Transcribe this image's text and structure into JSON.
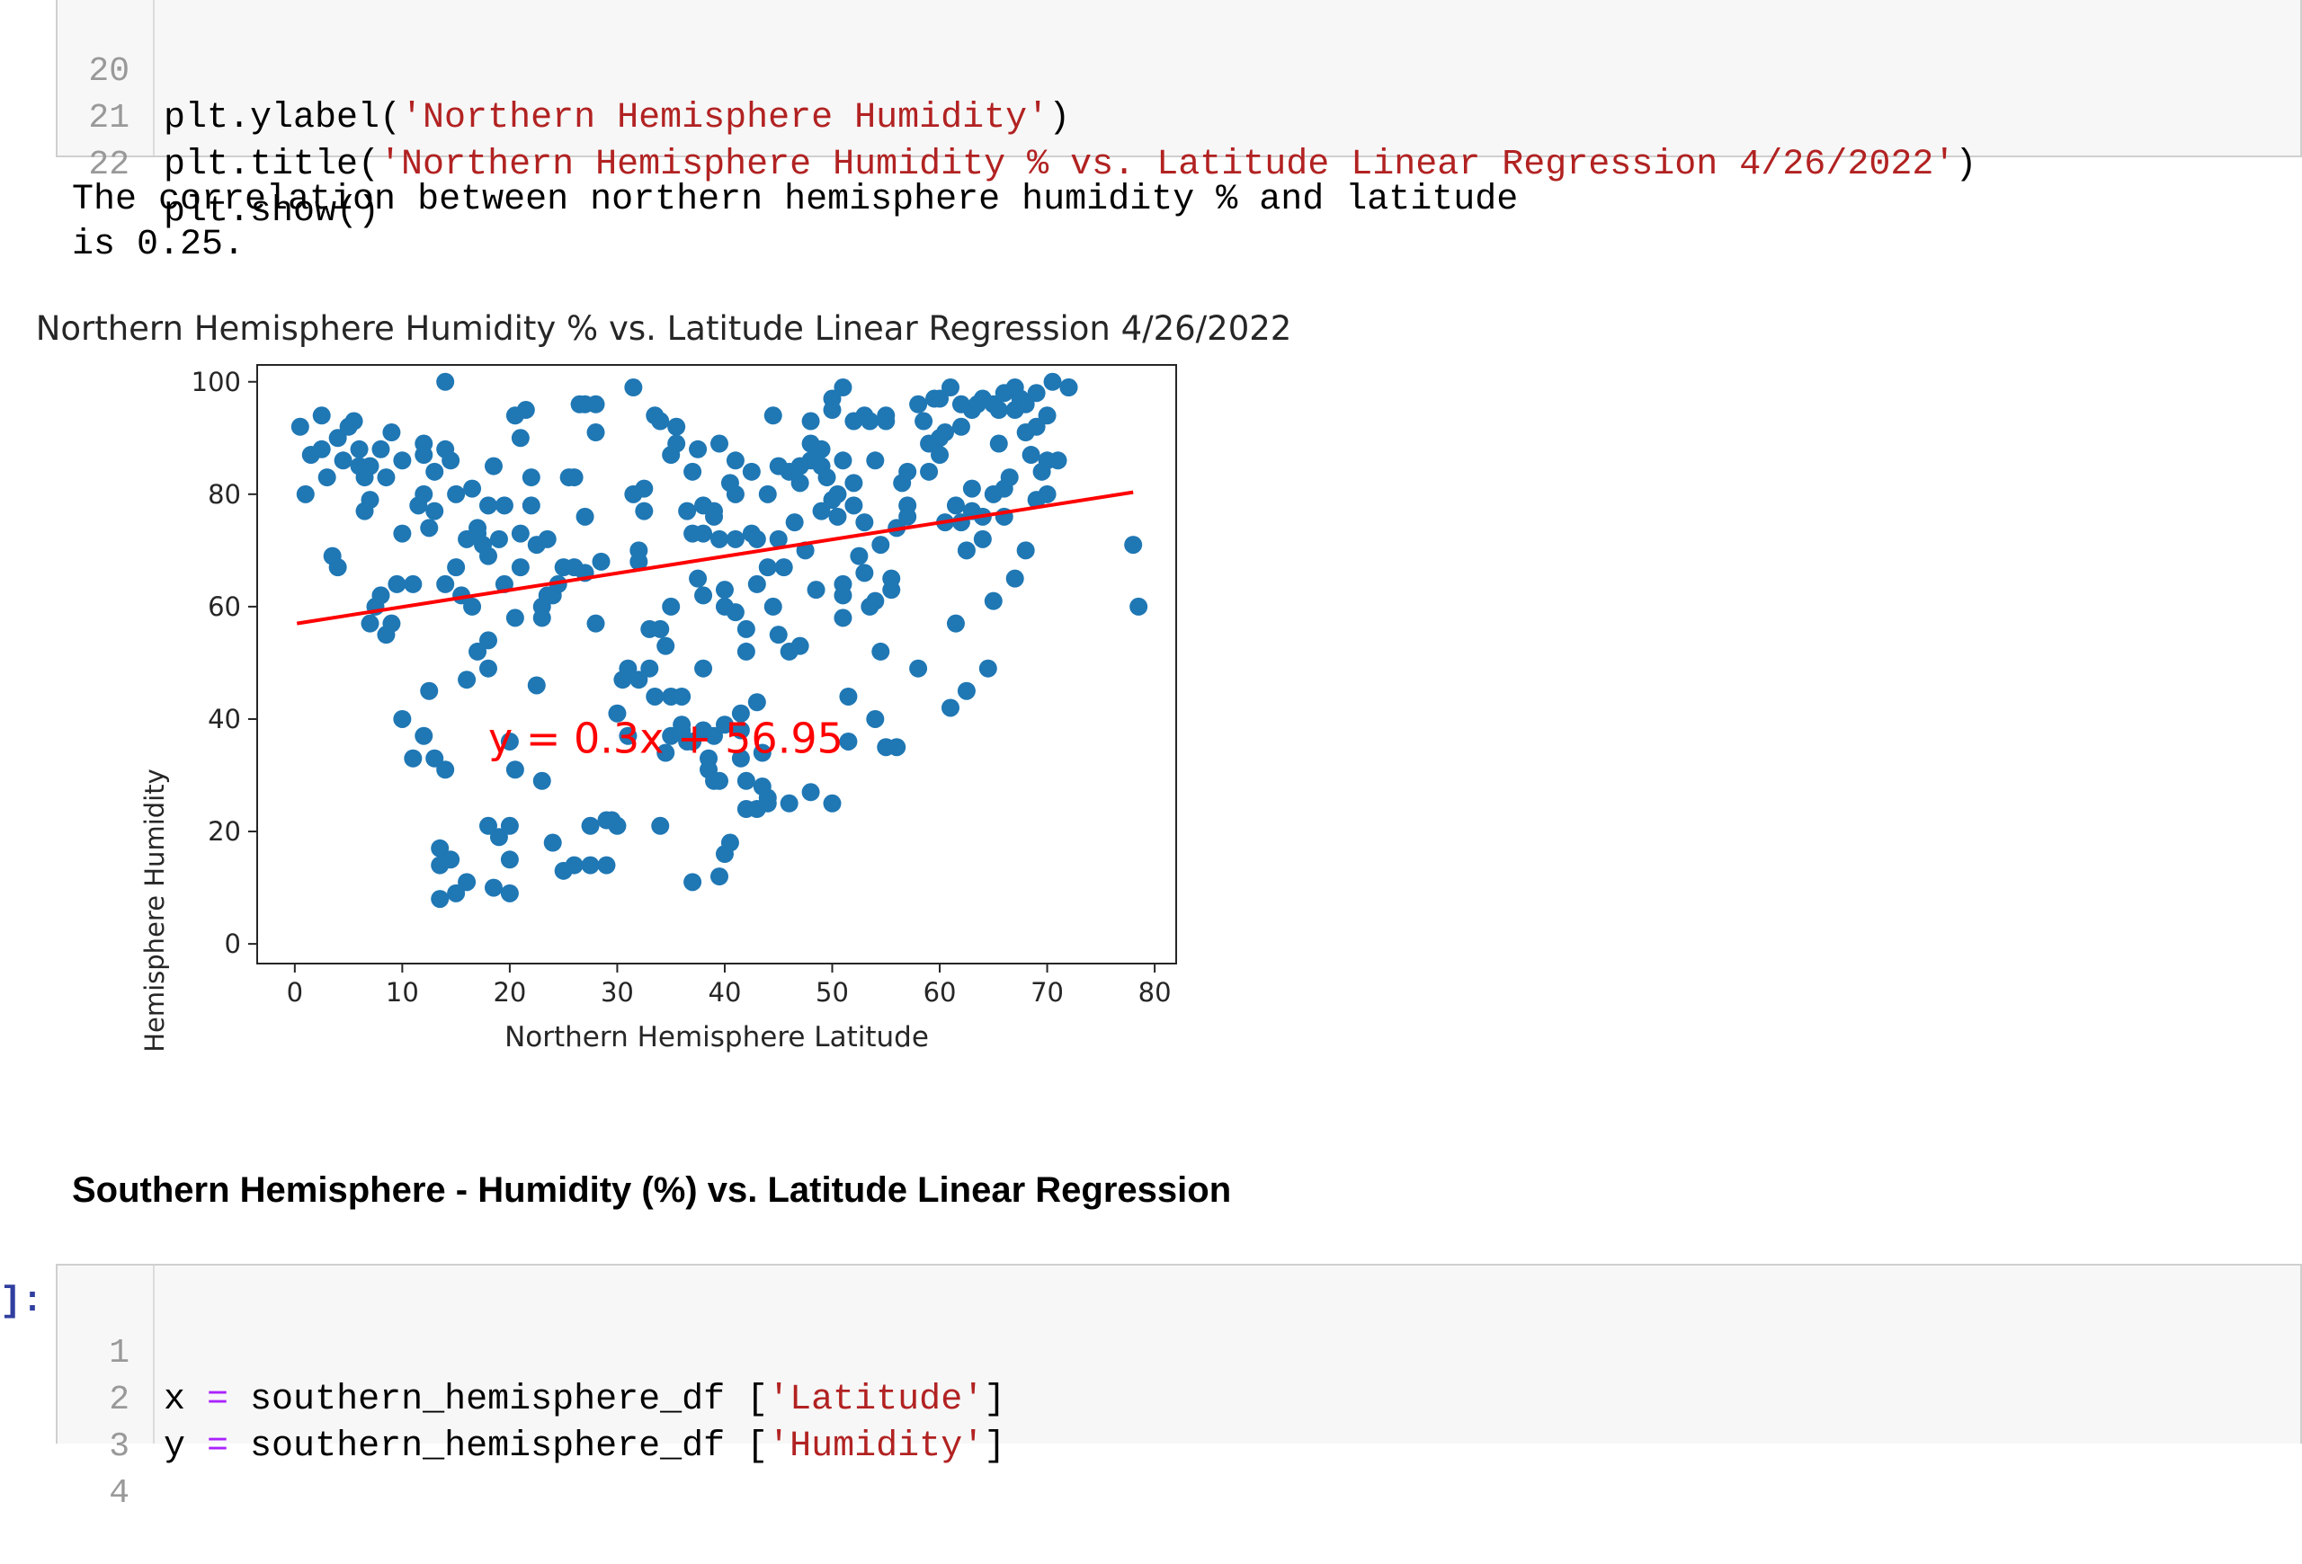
{
  "top_cell": {
    "lines": [
      {
        "num": "20",
        "pre": "plt.ylabel(",
        "str": "'Northern Hemisphere Humidity'",
        "post": ")"
      },
      {
        "num": "21",
        "pre": "plt.title(",
        "str": "'Northern Hemisphere Humidity % vs. Latitude Linear Regression 4/26/2022'",
        "post": ")"
      },
      {
        "num": "22",
        "pre": "plt.show()",
        "str": "",
        "post": ""
      }
    ]
  },
  "output": {
    "line1": "The correlation between northern hemisphere humidity % and latitude",
    "line2": "is 0.25."
  },
  "section_heading": "Southern Hemisphere - Humidity (%) vs. Latitude Linear Regression",
  "bottom_cell": {
    "prompt": "]:",
    "lines": [
      {
        "num": "1",
        "var": "x",
        "eq": "=",
        "pre": " southern_hemisphere_df [",
        "str": "'Latitude'",
        "post": "]"
      },
      {
        "num": "2",
        "var": "y",
        "eq": "=",
        "pre": " southern_hemisphere_df [",
        "str": "'Humidity'",
        "post": "]"
      },
      {
        "num": "3",
        "var": "",
        "eq": "",
        "pre": "",
        "str": "",
        "post": ""
      },
      {
        "num": "4",
        "var": "",
        "eq": "",
        "pre": "",
        "str": "",
        "post": ""
      }
    ]
  },
  "chart_data": {
    "type": "scatter",
    "title": "Northern Hemisphere Humidity % vs. Latitude Linear Regression 4/26/2022",
    "xlabel": "Northern Hemisphere Latitude",
    "ylabel": "Northern Hemisphere Humidity",
    "xlim": [
      -3.5,
      82
    ],
    "ylim": [
      -3.5,
      103
    ],
    "xticks": [
      0,
      10,
      20,
      30,
      40,
      50,
      60,
      70,
      80
    ],
    "yticks": [
      0,
      20,
      40,
      60,
      80,
      100
    ],
    "grid": false,
    "point_color": "#1f77b4",
    "line_color": "#ff0000",
    "regression": {
      "slope": 0.3,
      "intercept": 56.95,
      "x_range": [
        0.2,
        78
      ],
      "equation_label": "y = 0.3x + 56.95",
      "label_position": [
        18,
        34
      ]
    },
    "points": [
      [
        0.5,
        92
      ],
      [
        1,
        80
      ],
      [
        1.5,
        87
      ],
      [
        2.5,
        88
      ],
      [
        2.5,
        94
      ],
      [
        3,
        83
      ],
      [
        3.5,
        69
      ],
      [
        4,
        67
      ],
      [
        4,
        90
      ],
      [
        4.5,
        86
      ],
      [
        5,
        92
      ],
      [
        5.5,
        93
      ],
      [
        6,
        88
      ],
      [
        6,
        85
      ],
      [
        6.5,
        83
      ],
      [
        6.5,
        77
      ],
      [
        7,
        79
      ],
      [
        7,
        57
      ],
      [
        7,
        85
      ],
      [
        7.5,
        60
      ],
      [
        8,
        62
      ],
      [
        8,
        88
      ],
      [
        8.5,
        55
      ],
      [
        8.5,
        83
      ],
      [
        9,
        57
      ],
      [
        9,
        91
      ],
      [
        9.5,
        64
      ],
      [
        10,
        73
      ],
      [
        10,
        86
      ],
      [
        10,
        40
      ],
      [
        11,
        64
      ],
      [
        11,
        33
      ],
      [
        11.5,
        78
      ],
      [
        12,
        80
      ],
      [
        12,
        87
      ],
      [
        12,
        89
      ],
      [
        12,
        37
      ],
      [
        12.5,
        45
      ],
      [
        12.5,
        74
      ],
      [
        13,
        77
      ],
      [
        13,
        84
      ],
      [
        13,
        33
      ],
      [
        13.5,
        17
      ],
      [
        13.5,
        8
      ],
      [
        13.5,
        14
      ],
      [
        14,
        31
      ],
      [
        14,
        100
      ],
      [
        14,
        64
      ],
      [
        14,
        88
      ],
      [
        14.5,
        15
      ],
      [
        14.5,
        86
      ],
      [
        15,
        9
      ],
      [
        15,
        80
      ],
      [
        15,
        67
      ],
      [
        15.5,
        62
      ],
      [
        16,
        11
      ],
      [
        16,
        72
      ],
      [
        16,
        47
      ],
      [
        16.5,
        60
      ],
      [
        16.5,
        81
      ],
      [
        17,
        52
      ],
      [
        17,
        74
      ],
      [
        17,
        73
      ],
      [
        17.5,
        71
      ],
      [
        18,
        69
      ],
      [
        18,
        49
      ],
      [
        18,
        21
      ],
      [
        18,
        78
      ],
      [
        18,
        54
      ],
      [
        18.5,
        85
      ],
      [
        18.5,
        10
      ],
      [
        19,
        19
      ],
      [
        19,
        72
      ],
      [
        19.5,
        78
      ],
      [
        19.5,
        64
      ],
      [
        20,
        21
      ],
      [
        20,
        9
      ],
      [
        20,
        15
      ],
      [
        20,
        36
      ],
      [
        20.5,
        31
      ],
      [
        20.5,
        58
      ],
      [
        20.5,
        94
      ],
      [
        21,
        90
      ],
      [
        21,
        67
      ],
      [
        21,
        73
      ],
      [
        21.5,
        95
      ],
      [
        22,
        78
      ],
      [
        22,
        83
      ],
      [
        22.5,
        46
      ],
      [
        22.5,
        71
      ],
      [
        23,
        29
      ],
      [
        23,
        58
      ],
      [
        23,
        60
      ],
      [
        23.5,
        62
      ],
      [
        23.5,
        72
      ],
      [
        24,
        18
      ],
      [
        24,
        62
      ],
      [
        24.5,
        64
      ],
      [
        25,
        67
      ],
      [
        25,
        13
      ],
      [
        25.5,
        83
      ],
      [
        26,
        83
      ],
      [
        26,
        67
      ],
      [
        26,
        14
      ],
      [
        26.5,
        96
      ],
      [
        27,
        66
      ],
      [
        27,
        96
      ],
      [
        27,
        76
      ],
      [
        27.5,
        14
      ],
      [
        27.5,
        21
      ],
      [
        28,
        57
      ],
      [
        28,
        91
      ],
      [
        28,
        96
      ],
      [
        28.5,
        68
      ],
      [
        29,
        22
      ],
      [
        29,
        14
      ],
      [
        29.5,
        22
      ],
      [
        30,
        21
      ],
      [
        30,
        41
      ],
      [
        30.5,
        47
      ],
      [
        31,
        49
      ],
      [
        31,
        37
      ],
      [
        31.5,
        80
      ],
      [
        31.5,
        99
      ],
      [
        32,
        68
      ],
      [
        32,
        70
      ],
      [
        32,
        47
      ],
      [
        32.5,
        81
      ],
      [
        32.5,
        77
      ],
      [
        33,
        49
      ],
      [
        33,
        56
      ],
      [
        33.5,
        44
      ],
      [
        33.5,
        94
      ],
      [
        34,
        56
      ],
      [
        34,
        93
      ],
      [
        34,
        21
      ],
      [
        34.5,
        53
      ],
      [
        34.5,
        34
      ],
      [
        35,
        37
      ],
      [
        35,
        60
      ],
      [
        35,
        44
      ],
      [
        35,
        87
      ],
      [
        35.5,
        92
      ],
      [
        35.5,
        89
      ],
      [
        36,
        39
      ],
      [
        36,
        38
      ],
      [
        36,
        44
      ],
      [
        36.5,
        36
      ],
      [
        36.5,
        77
      ],
      [
        37,
        84
      ],
      [
        37,
        73
      ],
      [
        37,
        36
      ],
      [
        37,
        11
      ],
      [
        37.5,
        88
      ],
      [
        37.5,
        65
      ],
      [
        38,
        73
      ],
      [
        38,
        78
      ],
      [
        38,
        49
      ],
      [
        38,
        62
      ],
      [
        38,
        38
      ],
      [
        38.5,
        33
      ],
      [
        38.5,
        31
      ],
      [
        39,
        77
      ],
      [
        39,
        29
      ],
      [
        39,
        76
      ],
      [
        39,
        37
      ],
      [
        39.5,
        89
      ],
      [
        39.5,
        72
      ],
      [
        39.5,
        29
      ],
      [
        39.5,
        12
      ],
      [
        40,
        63
      ],
      [
        40,
        16
      ],
      [
        40,
        39
      ],
      [
        40,
        60
      ],
      [
        40.5,
        18
      ],
      [
        40.5,
        82
      ],
      [
        41,
        80
      ],
      [
        41,
        86
      ],
      [
        41,
        59
      ],
      [
        41,
        72
      ],
      [
        41.5,
        38
      ],
      [
        41.5,
        33
      ],
      [
        41.5,
        41
      ],
      [
        42,
        56
      ],
      [
        42,
        24
      ],
      [
        42,
        29
      ],
      [
        42,
        52
      ],
      [
        42.5,
        73
      ],
      [
        42.5,
        84
      ],
      [
        43,
        24
      ],
      [
        43,
        64
      ],
      [
        43,
        43
      ],
      [
        43,
        72
      ],
      [
        43.5,
        34
      ],
      [
        43.5,
        28
      ],
      [
        44,
        67
      ],
      [
        44,
        25
      ],
      [
        44,
        26
      ],
      [
        44,
        80
      ],
      [
        44.5,
        60
      ],
      [
        44.5,
        94
      ],
      [
        45,
        72
      ],
      [
        45,
        55
      ],
      [
        45,
        85
      ],
      [
        45.5,
        67
      ],
      [
        46,
        25
      ],
      [
        46,
        52
      ],
      [
        46,
        84
      ],
      [
        46.5,
        75
      ],
      [
        47,
        53
      ],
      [
        47,
        85
      ],
      [
        47,
        82
      ],
      [
        47.5,
        70
      ],
      [
        48,
        86
      ],
      [
        48,
        93
      ],
      [
        48,
        27
      ],
      [
        48,
        89
      ],
      [
        48.5,
        63
      ],
      [
        49,
        88
      ],
      [
        49,
        85
      ],
      [
        49,
        77
      ],
      [
        49.5,
        83
      ],
      [
        50,
        97
      ],
      [
        50,
        95
      ],
      [
        50,
        79
      ],
      [
        50,
        25
      ],
      [
        50.5,
        80
      ],
      [
        50.5,
        76
      ],
      [
        51,
        64
      ],
      [
        51,
        86
      ],
      [
        51,
        62
      ],
      [
        51,
        58
      ],
      [
        51,
        99
      ],
      [
        51.5,
        36
      ],
      [
        51.5,
        44
      ],
      [
        52,
        93
      ],
      [
        52,
        82
      ],
      [
        52,
        78
      ],
      [
        52.5,
        69
      ],
      [
        53,
        75
      ],
      [
        53,
        66
      ],
      [
        53,
        94
      ],
      [
        53.5,
        60
      ],
      [
        53.5,
        93
      ],
      [
        54,
        40
      ],
      [
        54,
        61
      ],
      [
        54,
        86
      ],
      [
        54.5,
        52
      ],
      [
        54.5,
        71
      ],
      [
        55,
        94
      ],
      [
        55,
        35
      ],
      [
        55,
        93
      ],
      [
        55.5,
        63
      ],
      [
        55.5,
        65
      ],
      [
        56,
        35
      ],
      [
        56,
        74
      ],
      [
        56.5,
        82
      ],
      [
        57,
        78
      ],
      [
        57,
        84
      ],
      [
        57,
        76
      ],
      [
        58,
        49
      ],
      [
        58,
        96
      ],
      [
        58.5,
        93
      ],
      [
        59,
        84
      ],
      [
        59,
        89
      ],
      [
        59.5,
        97
      ],
      [
        60,
        97
      ],
      [
        60,
        87
      ],
      [
        60,
        90
      ],
      [
        60.5,
        75
      ],
      [
        60.5,
        91
      ],
      [
        61,
        42
      ],
      [
        61,
        99
      ],
      [
        61.5,
        78
      ],
      [
        61.5,
        57
      ],
      [
        62,
        96
      ],
      [
        62,
        92
      ],
      [
        62,
        75
      ],
      [
        62.5,
        45
      ],
      [
        62.5,
        70
      ],
      [
        63,
        95
      ],
      [
        63,
        81
      ],
      [
        63,
        77
      ],
      [
        63.5,
        96
      ],
      [
        64,
        72
      ],
      [
        64,
        97
      ],
      [
        64,
        76
      ],
      [
        64.5,
        49
      ],
      [
        65,
        80
      ],
      [
        65,
        96
      ],
      [
        65,
        61
      ],
      [
        65.5,
        89
      ],
      [
        65.5,
        95
      ],
      [
        66,
        81
      ],
      [
        66,
        98
      ],
      [
        66,
        76
      ],
      [
        66.5,
        83
      ],
      [
        67,
        95
      ],
      [
        67,
        99
      ],
      [
        67,
        65
      ],
      [
        67.5,
        97
      ],
      [
        68,
        70
      ],
      [
        68,
        91
      ],
      [
        68,
        96
      ],
      [
        68.5,
        87
      ],
      [
        69,
        79
      ],
      [
        69,
        92
      ],
      [
        69,
        98
      ],
      [
        69.5,
        84
      ],
      [
        70,
        94
      ],
      [
        70,
        86
      ],
      [
        70,
        80
      ],
      [
        70.5,
        100
      ],
      [
        71,
        86
      ],
      [
        72,
        99
      ],
      [
        72,
        99
      ],
      [
        78,
        71
      ],
      [
        78.5,
        60
      ]
    ]
  }
}
